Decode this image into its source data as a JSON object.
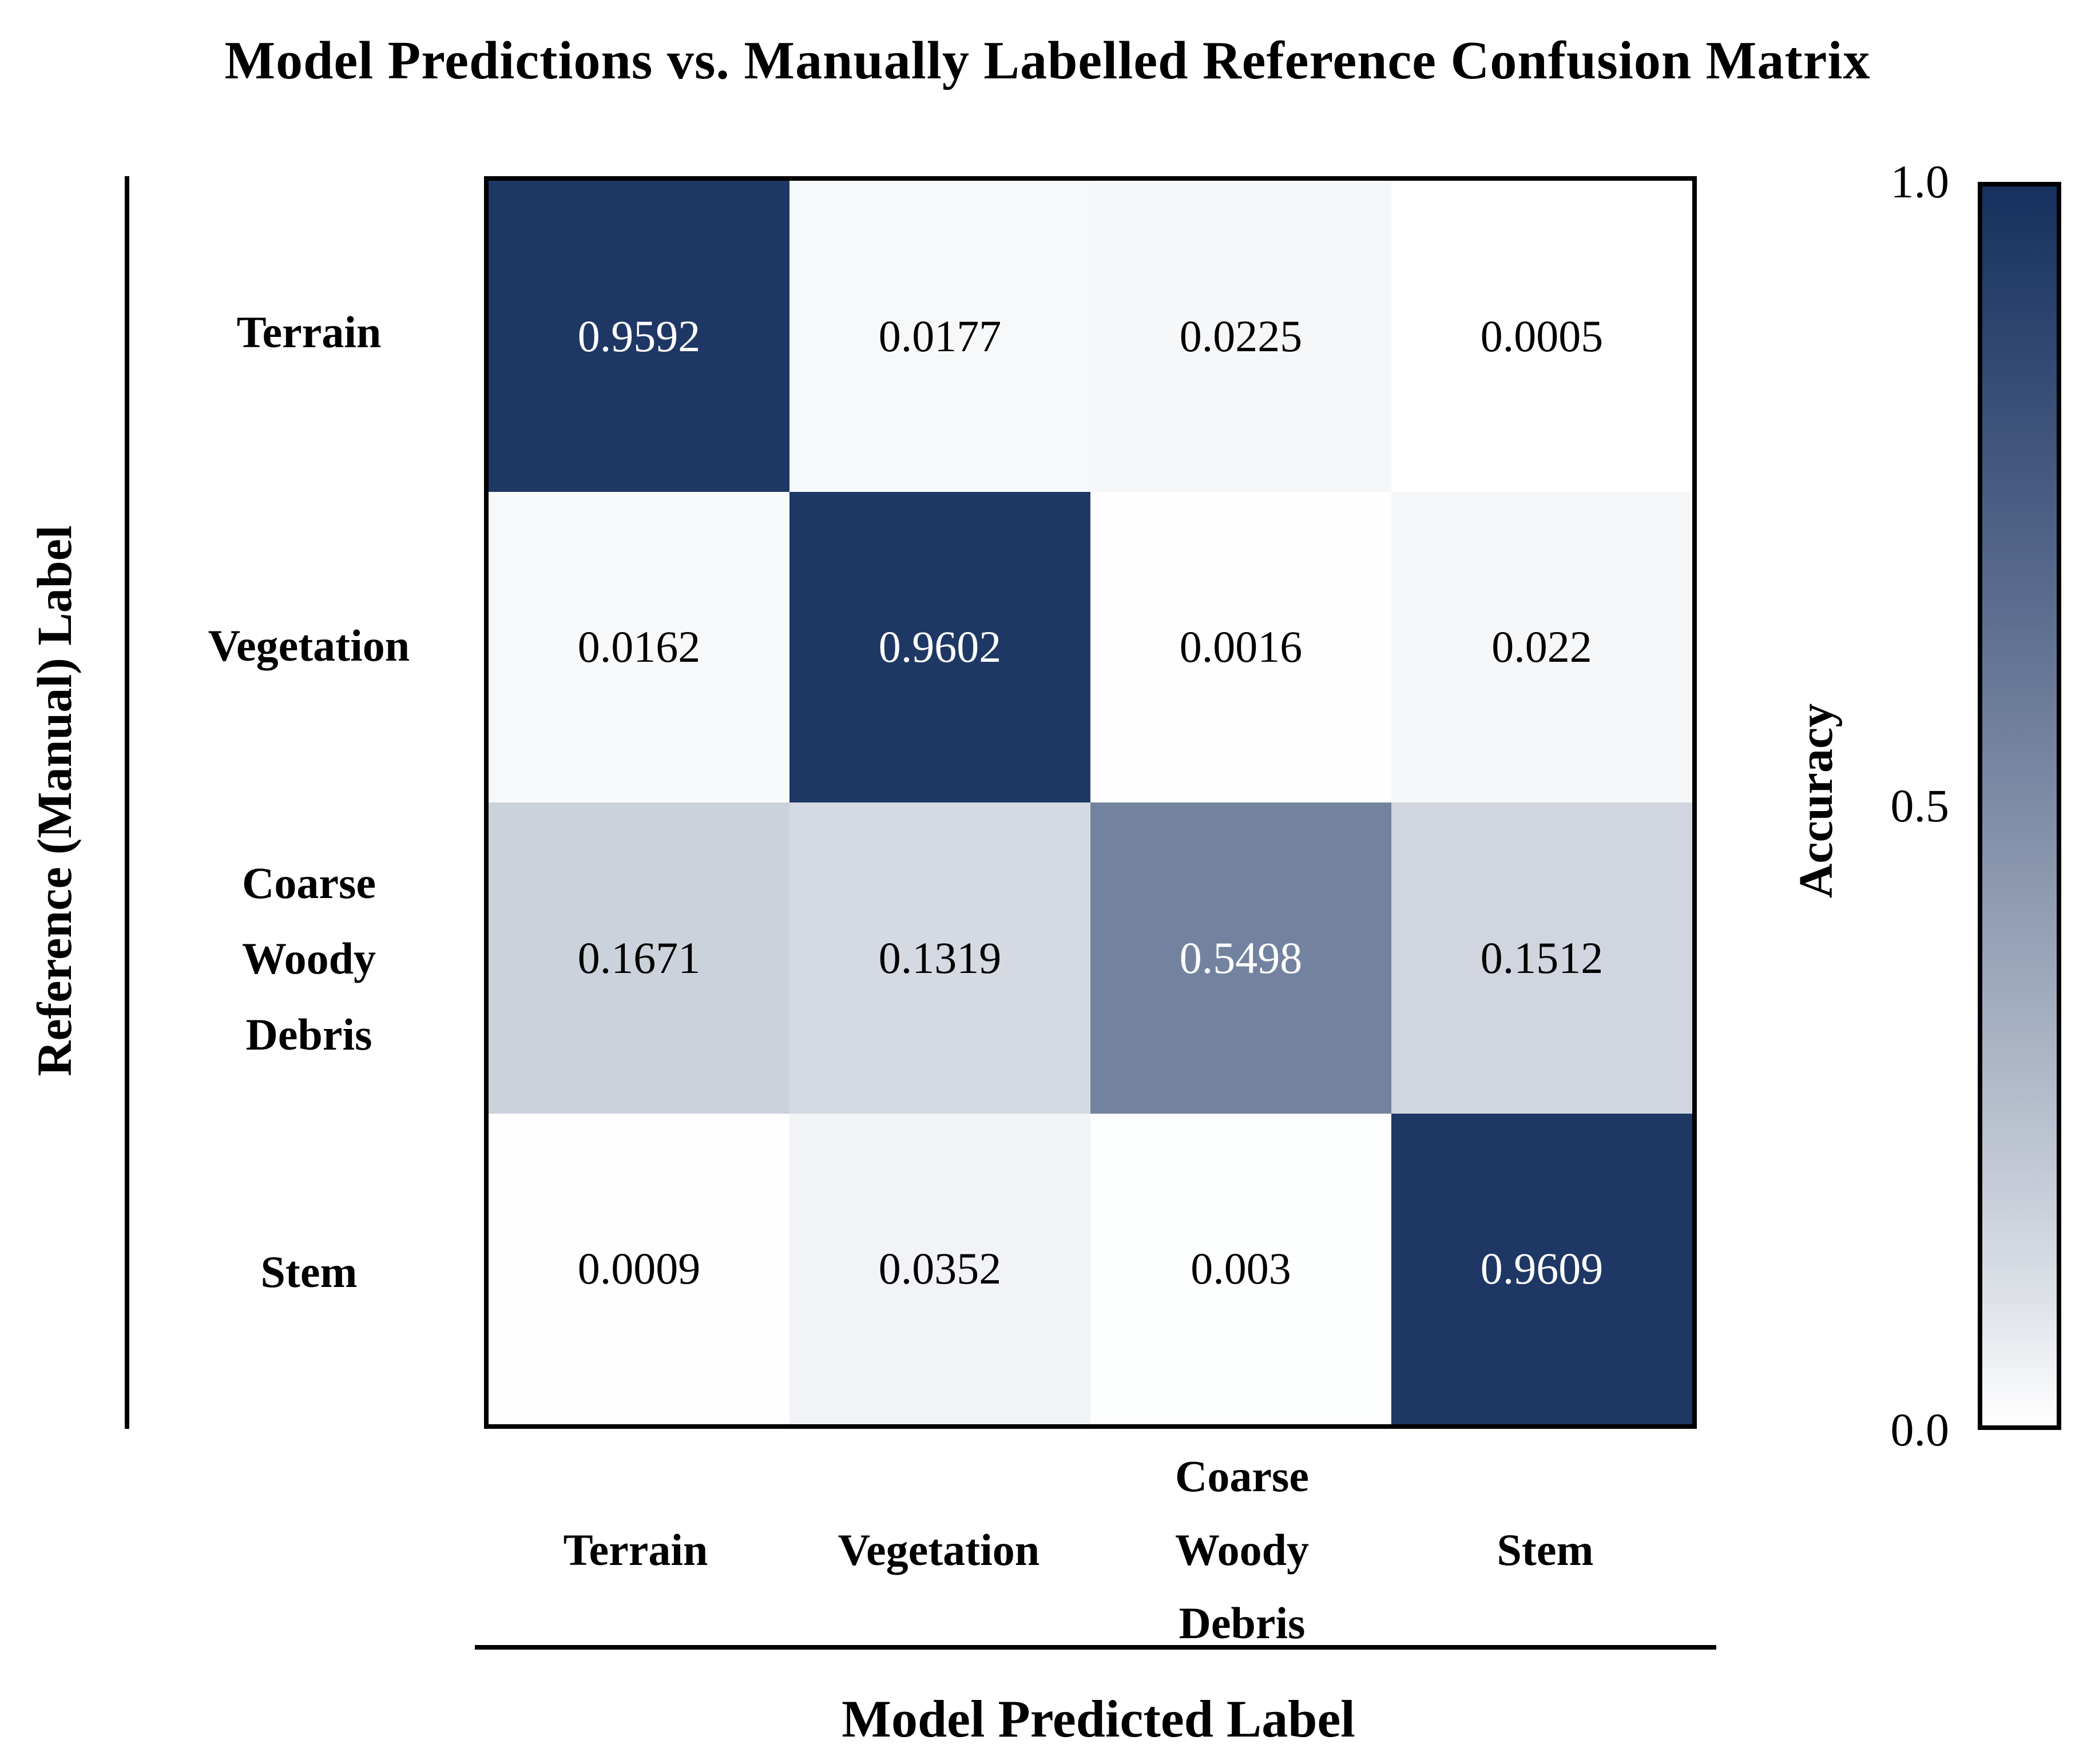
{
  "title": "Model Predictions vs. Manually Labelled Reference Confusion Matrix",
  "y_axis": {
    "title": "Reference (Manual) Label"
  },
  "x_axis": {
    "title": "Model Predicted Label"
  },
  "colorbar": {
    "title": "Accuracy",
    "ticks": [
      "1.0",
      "0.5",
      "0.0"
    ]
  },
  "colors": {
    "high": "#16305F",
    "low": "#FFFFFF",
    "text_on_dark": "#FFFFFF",
    "text_on_light": "#000000"
  },
  "chart_data": {
    "type": "heatmap",
    "title": "Model Predictions vs. Manually Labelled Reference Confusion Matrix",
    "xlabel": "Model Predicted Label",
    "ylabel": "Reference (Manual) Label",
    "rows": [
      "Terrain",
      "Vegetation",
      "Coarse Woody Debris",
      "Stem"
    ],
    "categories": [
      "Terrain",
      "Vegetation",
      "Coarse Woody Debris",
      "Stem"
    ],
    "matrix": [
      [
        0.9592,
        0.0177,
        0.0225,
        0.0005
      ],
      [
        0.0162,
        0.9602,
        0.0016,
        0.022
      ],
      [
        0.1671,
        0.1319,
        0.5498,
        0.1512
      ],
      [
        0.0009,
        0.0352,
        0.003,
        0.9609
      ]
    ],
    "value_labels": [
      [
        "0.9592",
        "0.0177",
        "0.0225",
        "0.0005"
      ],
      [
        "0.0162",
        "0.9602",
        "0.0016",
        "0.022"
      ],
      [
        "0.1671",
        "0.1319",
        "0.5498",
        "0.1512"
      ],
      [
        "0.0009",
        "0.0352",
        "0.003",
        "0.9609"
      ]
    ],
    "vmin": 0.0,
    "vmax": 1.0,
    "legend_title": "Accuracy",
    "legend_ticks": [
      1.0,
      0.5,
      0.0
    ],
    "legend_position": "right",
    "grid": false
  }
}
